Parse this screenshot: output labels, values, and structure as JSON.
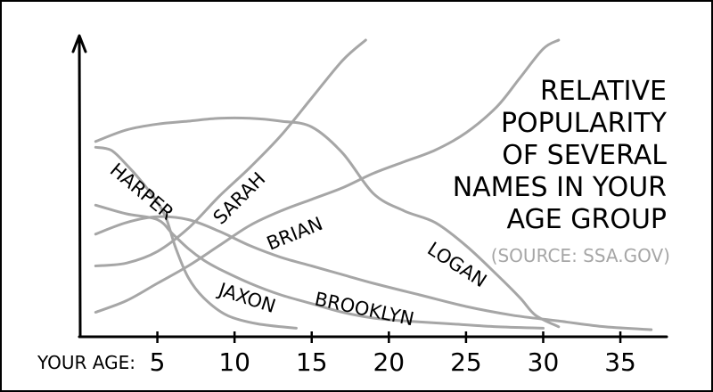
{
  "chart_data": {
    "type": "line",
    "title_lines": [
      "RELATIVE",
      "POPULARITY",
      "OF SEVERAL",
      "NAMES IN YOUR",
      "AGE GROUP"
    ],
    "source": "(SOURCE: SSA.GOV)",
    "xlabel": "YOUR AGE:",
    "xticks": [
      5,
      10,
      15,
      20,
      25,
      30,
      35
    ],
    "xlim": [
      0,
      38
    ],
    "ylim": [
      0,
      100
    ],
    "grid": false,
    "legend": "none (series labelled directly on lines)",
    "series_color": "#a6a6a6",
    "series": [
      {
        "name": "SARAH",
        "x": [
          1,
          3,
          5,
          7,
          9,
          11,
          13,
          15,
          17,
          18.5
        ],
        "y": [
          22,
          23,
          27,
          35,
          46,
          56,
          67,
          80,
          93,
          100
        ]
      },
      {
        "name": "HARPER",
        "x": [
          1,
          2,
          3,
          4,
          5,
          5.6,
          6.2,
          7,
          8,
          9.5,
          11.5,
          14
        ],
        "y": [
          63,
          62,
          57,
          51,
          44,
          38,
          28,
          18,
          11,
          5,
          2,
          0.5
        ]
      },
      {
        "name": "BRIAN",
        "x": [
          1,
          3,
          5,
          7,
          9,
          11,
          13,
          15,
          17,
          19,
          21,
          23,
          25,
          27,
          28.5,
          29.5,
          31
        ],
        "y": [
          65,
          69,
          71,
          72,
          73,
          73,
          72,
          70,
          61,
          47,
          41,
          37,
          29,
          19,
          11,
          5,
          1
        ]
      },
      {
        "name": "LOGAN",
        "x": [
          1,
          3,
          5,
          7,
          9,
          11,
          13,
          15,
          17,
          19,
          21,
          23,
          25,
          27,
          28.5,
          30,
          31
        ],
        "y": [
          6,
          10,
          16,
          22,
          29,
          36,
          41,
          45,
          49,
          54,
          58,
          62,
          68,
          77,
          87,
          97,
          100
        ]
      },
      {
        "name": "JAXON",
        "x": [
          1,
          3,
          5,
          6,
          7,
          8,
          9,
          11,
          13,
          15,
          17,
          19,
          21,
          24,
          27,
          30
        ],
        "y": [
          43,
          40,
          38,
          33,
          28,
          24,
          21,
          16,
          12,
          9,
          6,
          4,
          3,
          2,
          1,
          0.5
        ]
      },
      {
        "name": "BROOKLYN",
        "x": [
          1,
          3,
          5,
          7,
          9,
          11,
          13,
          15,
          17,
          19,
          22,
          25,
          28,
          31,
          34,
          37
        ],
        "y": [
          33,
          37,
          39,
          38,
          34,
          29,
          25,
          22,
          19,
          16,
          12,
          8,
          5,
          3,
          1,
          0
        ]
      }
    ],
    "labels": [
      {
        "text": "HARPER",
        "series": "HARPER"
      },
      {
        "text": "SARAH",
        "series": "SARAH"
      },
      {
        "text": "BRIAN",
        "series": "LOGAN"
      },
      {
        "text": "LOGAN",
        "series": "BRIAN"
      },
      {
        "text": "JAXON",
        "series": "BROOKLYN"
      },
      {
        "text": "BROOKLYN",
        "series": "JAXON"
      }
    ]
  }
}
